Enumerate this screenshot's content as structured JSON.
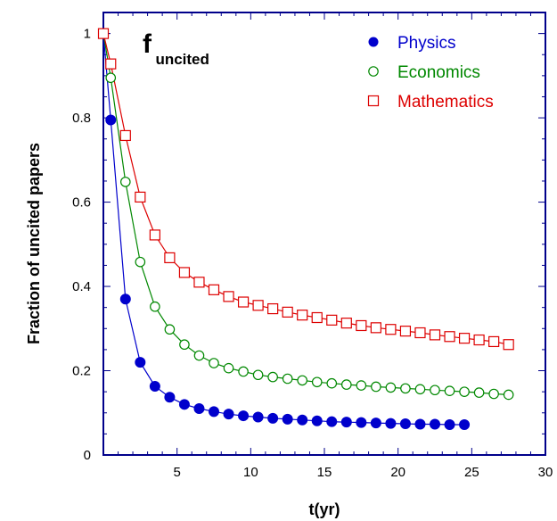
{
  "chart_data": {
    "type": "scatter",
    "xlabel": "t(yr)",
    "ylabel": "Fraction of uncited papers",
    "xlim": [
      0,
      30
    ],
    "ylim": [
      0,
      1.05
    ],
    "xticks": [
      5,
      10,
      15,
      20,
      25,
      30
    ],
    "yticks": [
      0,
      0.2,
      0.4,
      0.6,
      0.8,
      1
    ],
    "xtick_labels": [
      "5",
      "10",
      "15",
      "20",
      "25",
      "30"
    ],
    "ytick_labels": [
      "0",
      "0.2",
      "0.4",
      "0.6",
      "0.8",
      "1"
    ],
    "annotation": {
      "main": "f",
      "subscript": "uncited"
    },
    "grid": false,
    "legend_position": "top-right",
    "series": [
      {
        "name": "Physics",
        "color": "#0000cc",
        "marker": "filled-circle",
        "x": [
          0,
          0.5,
          1.5,
          2.5,
          3.5,
          4.5,
          5.5,
          6.5,
          7.5,
          8.5,
          9.5,
          10.5,
          11.5,
          12.5,
          13.5,
          14.5,
          15.5,
          16.5,
          17.5,
          18.5,
          19.5,
          20.5,
          21.5,
          22.5,
          23.5,
          24.5
        ],
        "y": [
          1.0,
          0.795,
          0.37,
          0.22,
          0.163,
          0.137,
          0.12,
          0.11,
          0.103,
          0.097,
          0.093,
          0.09,
          0.087,
          0.085,
          0.083,
          0.081,
          0.079,
          0.078,
          0.077,
          0.076,
          0.075,
          0.074,
          0.073,
          0.073,
          0.072,
          0.072
        ]
      },
      {
        "name": "Economics",
        "color": "#008800",
        "marker": "open-circle",
        "x": [
          0,
          0.5,
          1.5,
          2.5,
          3.5,
          4.5,
          5.5,
          6.5,
          7.5,
          8.5,
          9.5,
          10.5,
          11.5,
          12.5,
          13.5,
          14.5,
          15.5,
          16.5,
          17.5,
          18.5,
          19.5,
          20.5,
          21.5,
          22.5,
          23.5,
          24.5,
          25.5,
          26.5,
          27.5
        ],
        "y": [
          1.0,
          0.895,
          0.648,
          0.458,
          0.352,
          0.298,
          0.262,
          0.236,
          0.218,
          0.206,
          0.198,
          0.19,
          0.185,
          0.181,
          0.177,
          0.173,
          0.17,
          0.167,
          0.165,
          0.162,
          0.16,
          0.158,
          0.156,
          0.154,
          0.152,
          0.15,
          0.148,
          0.145,
          0.143
        ]
      },
      {
        "name": "Mathematics",
        "color": "#dd0000",
        "marker": "open-square",
        "x": [
          0,
          0.5,
          1.5,
          2.5,
          3.5,
          4.5,
          5.5,
          6.5,
          7.5,
          8.5,
          9.5,
          10.5,
          11.5,
          12.5,
          13.5,
          14.5,
          15.5,
          16.5,
          17.5,
          18.5,
          19.5,
          20.5,
          21.5,
          22.5,
          23.5,
          24.5,
          25.5,
          26.5,
          27.5
        ],
        "y": [
          1.0,
          0.928,
          0.758,
          0.612,
          0.522,
          0.468,
          0.433,
          0.41,
          0.392,
          0.376,
          0.363,
          0.355,
          0.347,
          0.339,
          0.332,
          0.326,
          0.32,
          0.313,
          0.307,
          0.302,
          0.298,
          0.294,
          0.29,
          0.285,
          0.281,
          0.277,
          0.273,
          0.269,
          0.262
        ]
      }
    ]
  }
}
